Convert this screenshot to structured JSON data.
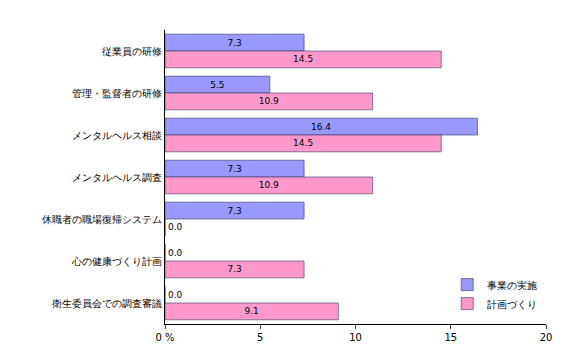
{
  "chart_data": {
    "type": "bar",
    "orientation": "horizontal",
    "categories": [
      "従業員の研修",
      "管理・監督者の研修",
      "メンタルヘルス相談",
      "メンタルヘルス調査",
      "休職者の職場復帰システム",
      "心の健康づくり計画",
      "衛生委員会での調査審議"
    ],
    "series": [
      {
        "name": "事業の実施",
        "color": "#9999ff",
        "values": [
          7.3,
          5.5,
          16.4,
          7.3,
          7.3,
          0.0,
          0.0
        ],
        "value_labels": [
          "7.3",
          "5.5",
          "16.4",
          "7.3",
          "7.3",
          "0.0",
          "0.0"
        ]
      },
      {
        "name": "計画づくり",
        "color": "#ff99cc",
        "values": [
          14.5,
          10.9,
          14.5,
          10.9,
          0.0,
          7.3,
          9.1
        ],
        "value_labels": [
          "14.5",
          "10.9",
          "14.5",
          "10.9",
          "0.0",
          "7.3",
          "9.1"
        ]
      }
    ],
    "xlim": [
      0,
      20
    ],
    "xticks": [
      {
        "value": 0,
        "label": "0 %"
      },
      5,
      10,
      15,
      20
    ],
    "grid": false,
    "legend": "lower right",
    "data_labels": true
  }
}
